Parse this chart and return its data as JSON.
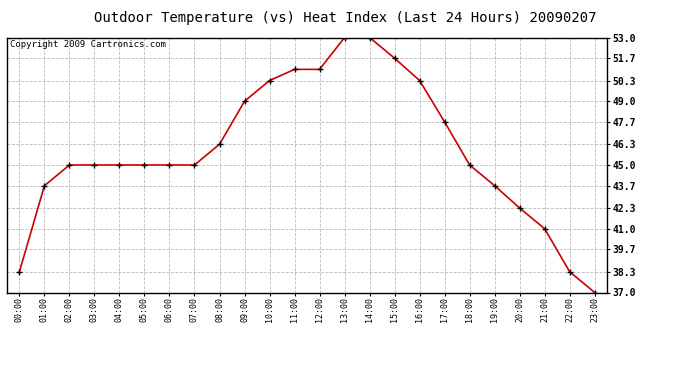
{
  "title": "Outdoor Temperature (vs) Heat Index (Last 24 Hours) 20090207",
  "copyright": "Copyright 2009 Cartronics.com",
  "hours": [
    "00:00",
    "01:00",
    "02:00",
    "03:00",
    "04:00",
    "05:00",
    "06:00",
    "07:00",
    "08:00",
    "09:00",
    "10:00",
    "11:00",
    "12:00",
    "13:00",
    "14:00",
    "15:00",
    "16:00",
    "17:00",
    "18:00",
    "19:00",
    "20:00",
    "21:00",
    "22:00",
    "23:00"
  ],
  "values": [
    38.3,
    43.7,
    45.0,
    45.0,
    45.0,
    45.0,
    45.0,
    45.0,
    46.3,
    49.0,
    50.3,
    51.0,
    51.0,
    53.0,
    53.0,
    51.7,
    50.3,
    47.7,
    45.0,
    43.7,
    42.3,
    41.0,
    38.3,
    37.0
  ],
  "ylim_min": 37.0,
  "ylim_max": 53.0,
  "yticks": [
    37.0,
    38.3,
    39.7,
    41.0,
    42.3,
    43.7,
    45.0,
    46.3,
    47.7,
    49.0,
    50.3,
    51.7,
    53.0
  ],
  "line_color": "#cc0000",
  "marker": "+",
  "marker_color": "#000000",
  "bg_color": "#ffffff",
  "grid_color": "#bbbbbb",
  "title_fontsize": 10,
  "copyright_fontsize": 6.5
}
